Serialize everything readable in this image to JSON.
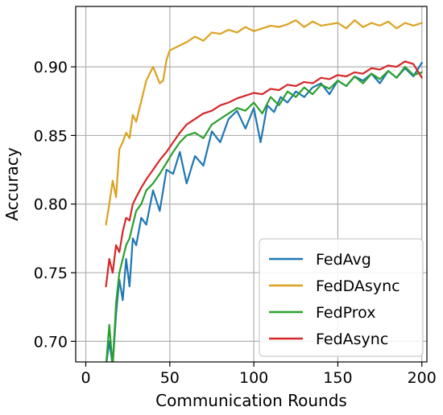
{
  "chart_data": {
    "type": "line",
    "title": "",
    "xlabel": "Communication Rounds",
    "ylabel": "Accuracy",
    "xlim": [
      -6,
      203
    ],
    "ylim": [
      0.685,
      0.944
    ],
    "xticks": [
      0,
      50,
      100,
      150,
      200
    ],
    "yticks": [
      0.7,
      0.75,
      0.8,
      0.85,
      0.9
    ],
    "xtick_labels": [
      "0",
      "50",
      "100",
      "150",
      "200"
    ],
    "ytick_labels": [
      "0.70",
      "0.75",
      "0.80",
      "0.85",
      "0.90"
    ],
    "grid": true,
    "legend_position": "bottom-right",
    "series": [
      {
        "name": "FedAvg",
        "color": "#1f77b4",
        "x": [
          12,
          14,
          16,
          18,
          20,
          22,
          24,
          26,
          28,
          30,
          33,
          36,
          40,
          44,
          48,
          52,
          56,
          60,
          65,
          70,
          75,
          80,
          85,
          90,
          95,
          100,
          104,
          108,
          112,
          116,
          120,
          125,
          130,
          135,
          140,
          145,
          150,
          155,
          160,
          165,
          170,
          175,
          180,
          185,
          190,
          195,
          200
        ],
        "y": [
          0.682,
          0.7,
          0.682,
          0.72,
          0.745,
          0.73,
          0.76,
          0.74,
          0.775,
          0.77,
          0.79,
          0.785,
          0.81,
          0.795,
          0.825,
          0.822,
          0.838,
          0.815,
          0.835,
          0.828,
          0.853,
          0.845,
          0.862,
          0.868,
          0.855,
          0.87,
          0.845,
          0.872,
          0.867,
          0.878,
          0.874,
          0.882,
          0.878,
          0.885,
          0.888,
          0.88,
          0.89,
          0.886,
          0.893,
          0.89,
          0.895,
          0.888,
          0.897,
          0.892,
          0.899,
          0.893,
          0.903
        ]
      },
      {
        "name": "FedDAsync",
        "color": "#dba21f",
        "x": [
          12,
          14,
          16,
          18,
          20,
          22,
          24,
          26,
          28,
          30,
          33,
          36,
          40,
          44,
          46,
          48,
          50,
          55,
          60,
          65,
          70,
          75,
          80,
          85,
          90,
          95,
          100,
          105,
          110,
          115,
          120,
          125,
          130,
          135,
          140,
          145,
          150,
          155,
          160,
          165,
          170,
          175,
          180,
          185,
          190,
          195,
          200
        ],
        "y": [
          0.785,
          0.8,
          0.817,
          0.805,
          0.84,
          0.845,
          0.852,
          0.848,
          0.865,
          0.86,
          0.875,
          0.89,
          0.9,
          0.888,
          0.89,
          0.905,
          0.912,
          0.915,
          0.918,
          0.922,
          0.919,
          0.925,
          0.924,
          0.927,
          0.925,
          0.929,
          0.926,
          0.928,
          0.93,
          0.929,
          0.931,
          0.934,
          0.929,
          0.933,
          0.93,
          0.931,
          0.932,
          0.928,
          0.934,
          0.929,
          0.932,
          0.93,
          0.933,
          0.928,
          0.932,
          0.93,
          0.932
        ]
      },
      {
        "name": "FedProx",
        "color": "#2ca02c",
        "x": [
          12,
          14,
          16,
          18,
          20,
          22,
          24,
          26,
          28,
          30,
          33,
          36,
          40,
          44,
          48,
          52,
          56,
          60,
          65,
          70,
          75,
          80,
          85,
          90,
          95,
          100,
          105,
          110,
          115,
          120,
          125,
          130,
          135,
          140,
          145,
          150,
          155,
          160,
          165,
          170,
          175,
          180,
          185,
          190,
          195,
          200
        ],
        "y": [
          0.682,
          0.712,
          0.682,
          0.728,
          0.75,
          0.76,
          0.77,
          0.775,
          0.785,
          0.795,
          0.8,
          0.81,
          0.815,
          0.822,
          0.83,
          0.838,
          0.845,
          0.85,
          0.852,
          0.848,
          0.858,
          0.862,
          0.866,
          0.87,
          0.868,
          0.874,
          0.866,
          0.878,
          0.872,
          0.882,
          0.878,
          0.885,
          0.88,
          0.887,
          0.884,
          0.89,
          0.886,
          0.893,
          0.888,
          0.895,
          0.891,
          0.897,
          0.892,
          0.9,
          0.894,
          0.896
        ]
      },
      {
        "name": "FedAsync",
        "color": "#d62728",
        "x": [
          12,
          14,
          16,
          18,
          20,
          22,
          24,
          26,
          28,
          30,
          33,
          36,
          40,
          44,
          48,
          52,
          56,
          60,
          65,
          70,
          75,
          80,
          85,
          90,
          95,
          100,
          105,
          110,
          115,
          120,
          125,
          130,
          135,
          140,
          145,
          150,
          155,
          160,
          165,
          170,
          175,
          180,
          185,
          190,
          195,
          200
        ],
        "y": [
          0.74,
          0.76,
          0.75,
          0.77,
          0.765,
          0.78,
          0.79,
          0.788,
          0.8,
          0.805,
          0.812,
          0.818,
          0.825,
          0.832,
          0.838,
          0.845,
          0.852,
          0.858,
          0.862,
          0.866,
          0.868,
          0.872,
          0.874,
          0.877,
          0.879,
          0.881,
          0.88,
          0.884,
          0.883,
          0.887,
          0.886,
          0.889,
          0.888,
          0.892,
          0.891,
          0.894,
          0.893,
          0.896,
          0.895,
          0.899,
          0.898,
          0.901,
          0.9,
          0.904,
          0.902,
          0.892
        ]
      }
    ]
  }
}
